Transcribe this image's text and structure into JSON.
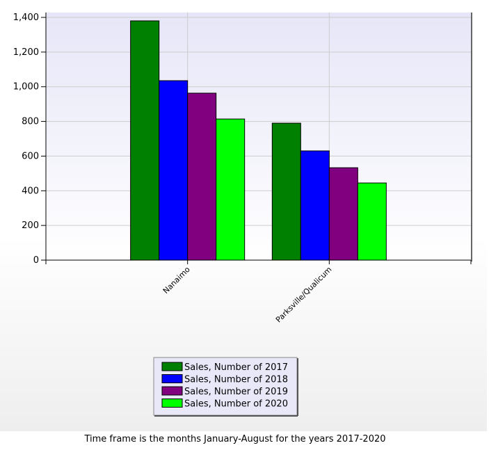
{
  "chart_data": {
    "type": "bar",
    "categories": [
      "Nanaimo",
      "Parksville/Qualicum"
    ],
    "series": [
      {
        "name": "Sales, Number of 2017",
        "color": "#008000",
        "values": [
          1380,
          790
        ]
      },
      {
        "name": "Sales, Number of 2018",
        "color": "#0000ff",
        "values": [
          1035,
          630
        ]
      },
      {
        "name": "Sales, Number of 2019",
        "color": "#800080",
        "values": [
          963,
          533
        ]
      },
      {
        "name": "Sales, Number of 2020",
        "color": "#00ff00",
        "values": [
          814,
          445
        ]
      }
    ],
    "ylim": [
      0,
      1400
    ],
    "yticks": [
      0,
      200,
      400,
      600,
      800,
      {
        "value": 1000,
        "label": "1,000"
      },
      {
        "value": 1200,
        "label": "1,200"
      },
      {
        "value": 1400,
        "label": "1,400"
      }
    ],
    "grid": true,
    "legend": "bottom",
    "note": "Time frame is the months January-August for the years 2017-2020"
  }
}
